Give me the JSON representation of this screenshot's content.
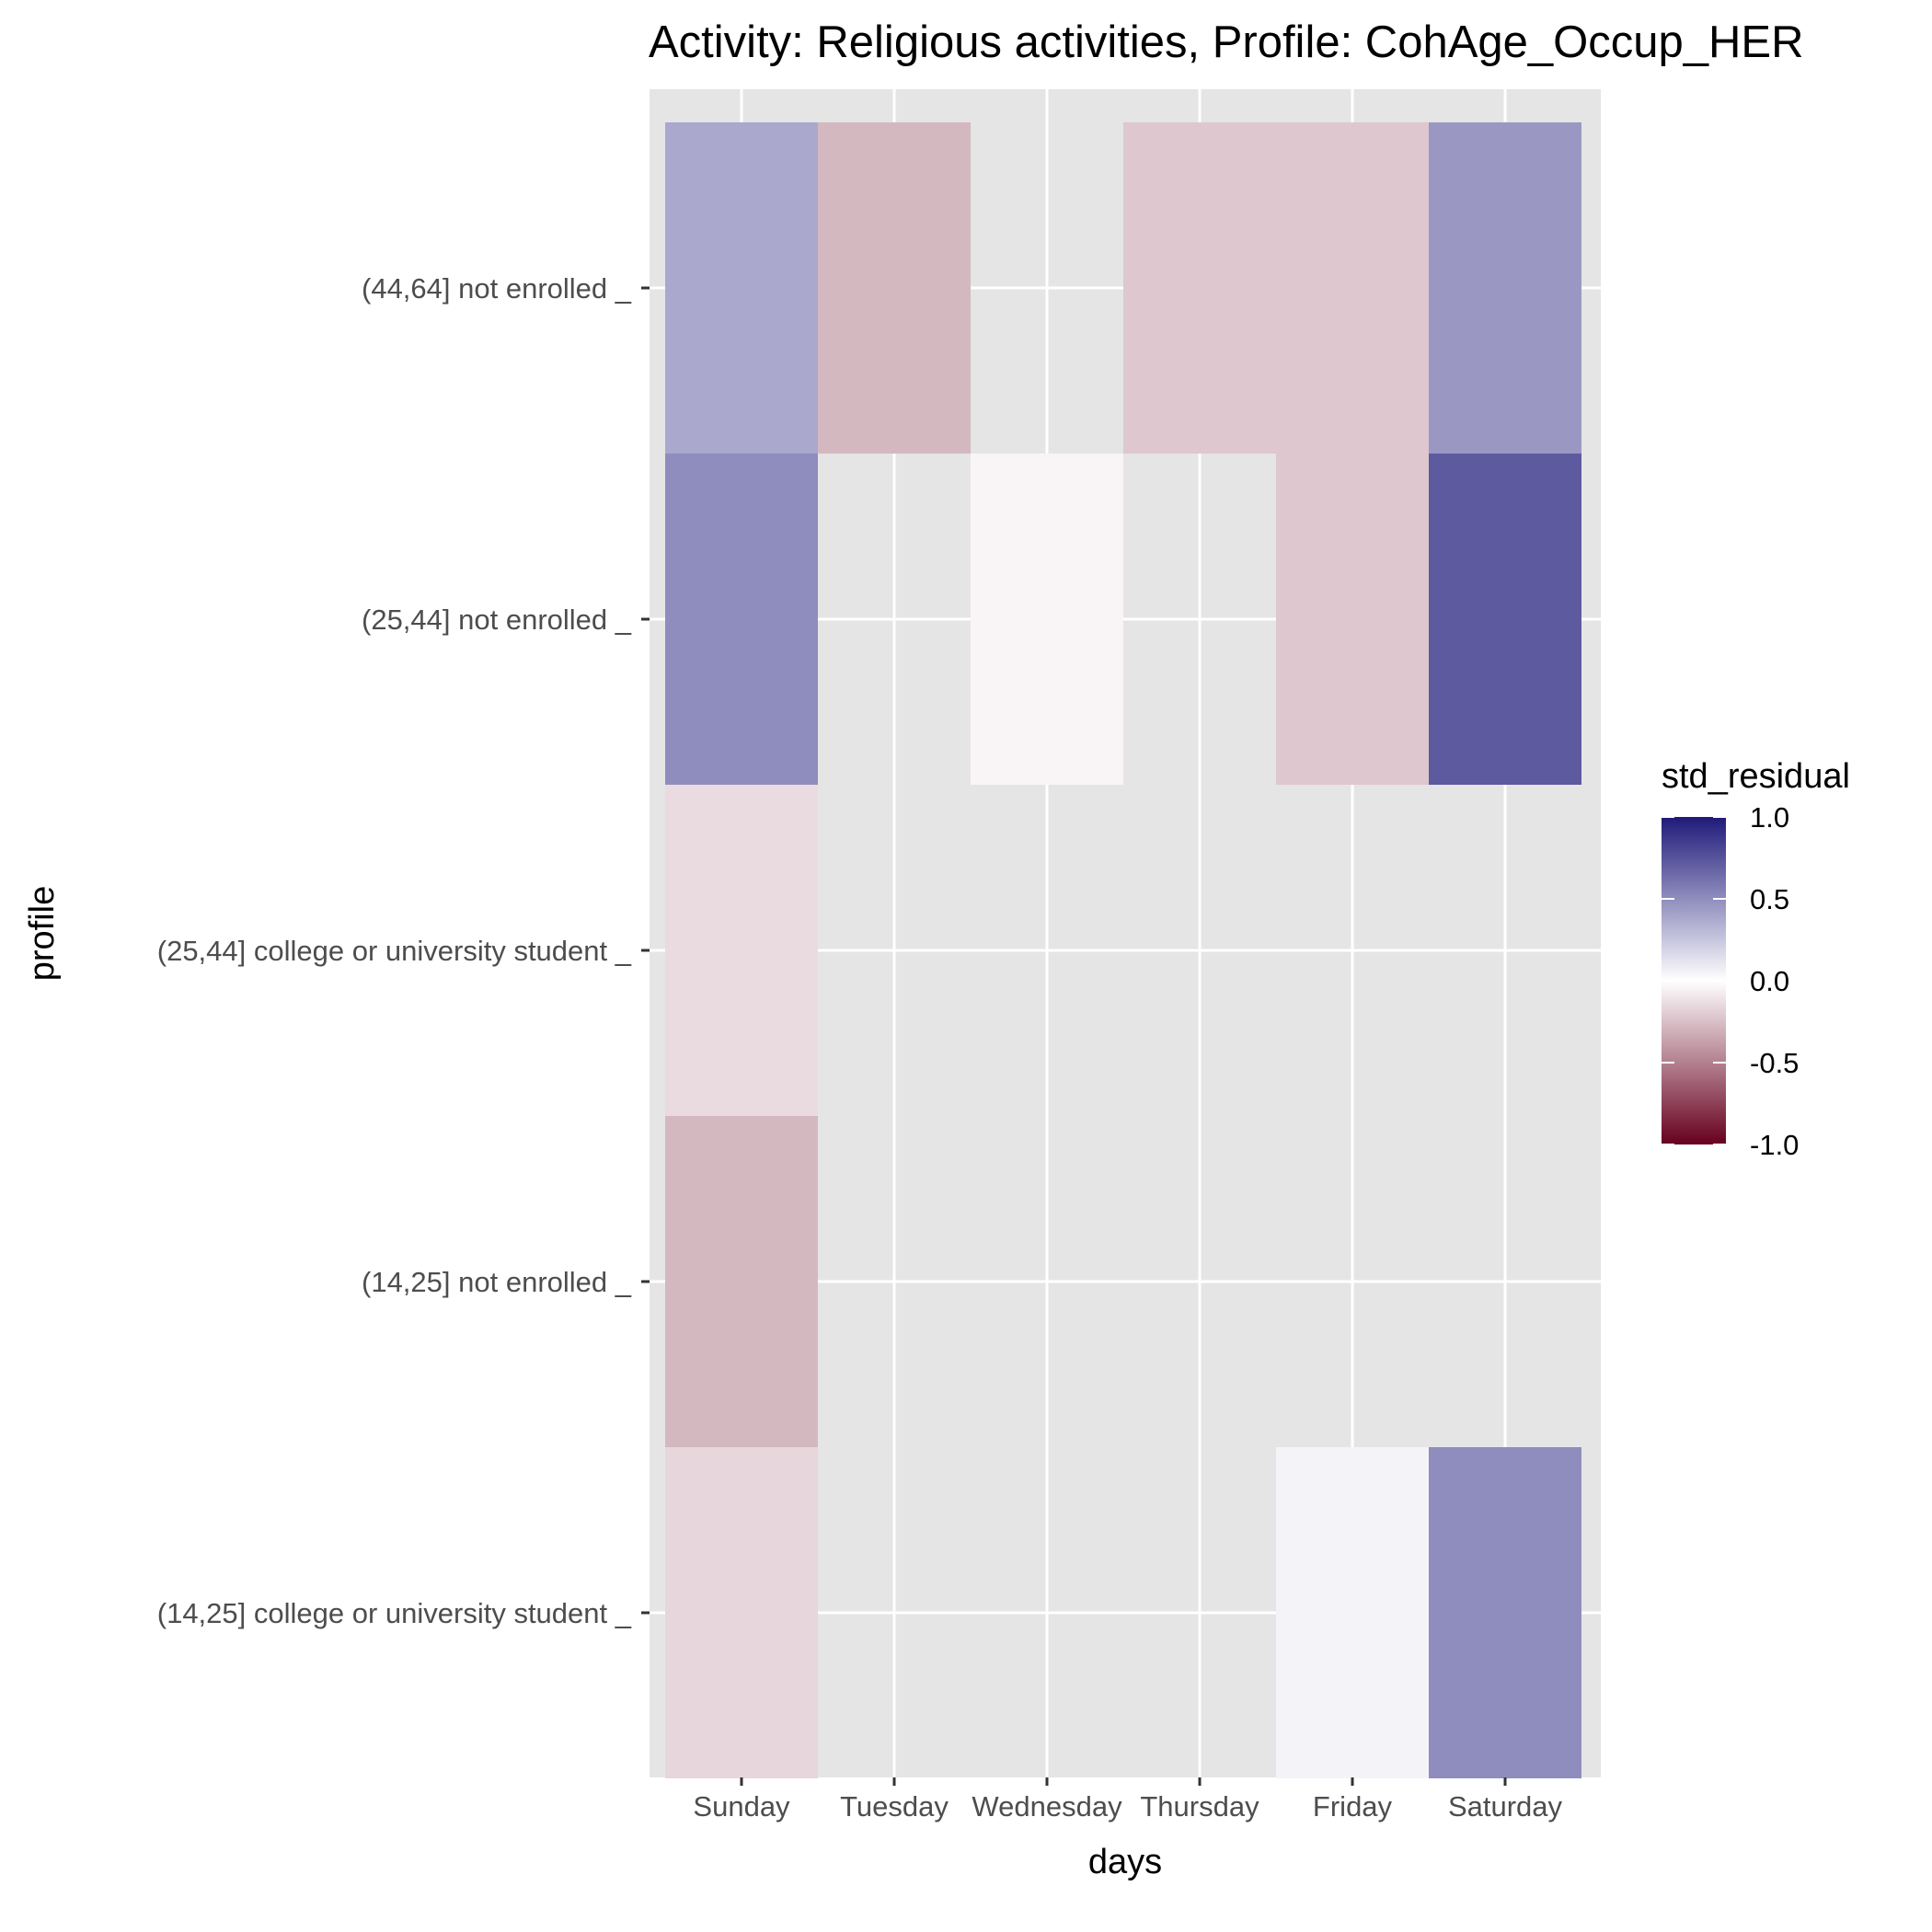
{
  "chart_data": {
    "type": "heatmap",
    "title": "Activity: Religious activities, Profile: CohAge_Occup_HER",
    "xlabel": "days",
    "ylabel": "profile",
    "x_categories": [
      "Sunday",
      "Tuesday",
      "Wednesday",
      "Thursday",
      "Friday",
      "Saturday"
    ],
    "y_categories": [
      "(44,64] not enrolled _",
      "(25,44] not enrolled _",
      "(25,44] college or university student _",
      "(14,25] not enrolled _",
      "(14,25] college or university student _"
    ],
    "cells": [
      {
        "x": "Sunday",
        "y": "(44,64] not enrolled _",
        "value": 0.38
      },
      {
        "x": "Tuesday",
        "y": "(44,64] not enrolled _",
        "value": -0.28
      },
      {
        "x": "Thursday",
        "y": "(44,64] not enrolled _",
        "value": -0.22
      },
      {
        "x": "Friday",
        "y": "(44,64] not enrolled _",
        "value": -0.22
      },
      {
        "x": "Saturday",
        "y": "(44,64] not enrolled _",
        "value": 0.45
      },
      {
        "x": "Sunday",
        "y": "(25,44] not enrolled _",
        "value": 0.5
      },
      {
        "x": "Wednesday",
        "y": "(25,44] not enrolled _",
        "value": -0.04
      },
      {
        "x": "Friday",
        "y": "(25,44] not enrolled _",
        "value": -0.22
      },
      {
        "x": "Saturday",
        "y": "(25,44] not enrolled _",
        "value": 0.72
      },
      {
        "x": "Sunday",
        "y": "(25,44] college or university student _",
        "value": -0.14
      },
      {
        "x": "Sunday",
        "y": "(14,25] not enrolled _",
        "value": -0.28
      },
      {
        "x": "Sunday",
        "y": "(14,25] college or university student _",
        "value": -0.16
      },
      {
        "x": "Friday",
        "y": "(14,25] college or university student _",
        "value": 0.05
      },
      {
        "x": "Saturday",
        "y": "(14,25] college or university student _",
        "value": 0.5
      }
    ],
    "legend": {
      "title": "std_residual",
      "placement": "right",
      "limits": [
        -1.0,
        1.0
      ],
      "breaks": [
        1.0,
        0.5,
        0.0,
        -0.5,
        -1.0
      ],
      "break_labels": [
        "1.0",
        "0.5",
        "0.0",
        "-0.5",
        "-1.0"
      ],
      "low_color": "#67001f",
      "mid_color": "#ffffff",
      "high_color": "#1f1a7a"
    },
    "panel_background": "#e5e5e5",
    "grid": true
  }
}
